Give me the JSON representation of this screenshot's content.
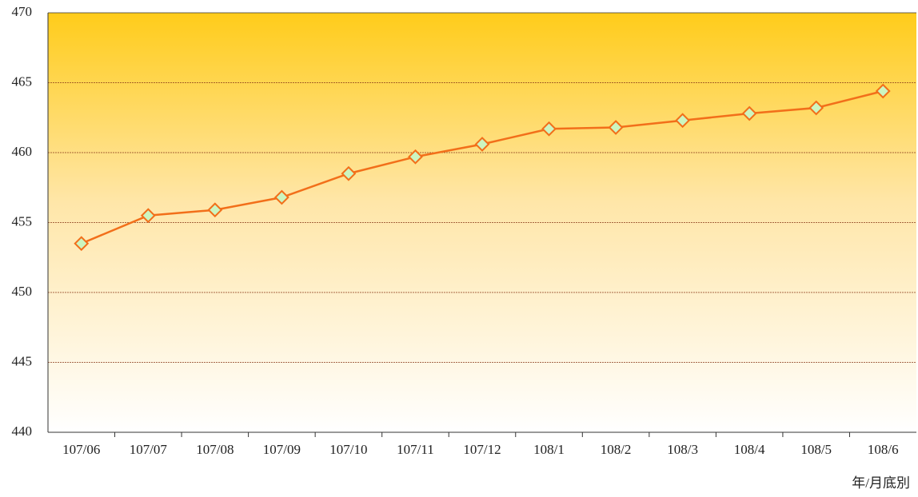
{
  "chart_data": {
    "type": "line",
    "x_label": "年/月底別",
    "categories": [
      "107/06",
      "107/07",
      "107/08",
      "107/09",
      "107/10",
      "107/11",
      "107/12",
      "108/1",
      "108/2",
      "108/3",
      "108/4",
      "108/5",
      "108/6"
    ],
    "series": [
      {
        "color": "#f26f1a",
        "values": [
          453.5,
          455.5,
          455.9,
          456.8,
          458.5,
          459.7,
          460.6,
          461.7,
          461.8,
          462.3,
          462.8,
          463.2,
          464.4
        ]
      }
    ],
    "ylim": [
      440,
      470
    ],
    "yticks": [
      440,
      445,
      450,
      455,
      460,
      465,
      470
    ],
    "grid": true
  }
}
